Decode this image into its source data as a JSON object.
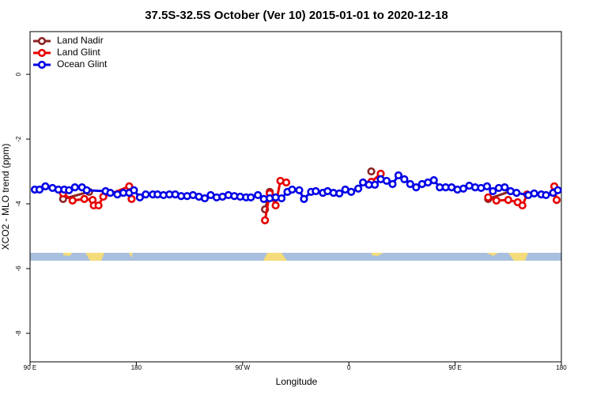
{
  "chart_data": {
    "type": "line",
    "title": "37.5S-32.5S October (Ver 10)   2015-01-01 to 2020-12-18",
    "x_label": "Longitude",
    "y_label": "XCO2 - MLO trend (ppm)",
    "xlim": [
      90,
      540
    ],
    "xticks": [
      {
        "value": 90,
        "label": "90 E"
      },
      180,
      {
        "value": 270,
        "label": "90 W"
      },
      {
        "value": 360,
        "label": "0"
      },
      {
        "value": 450,
        "label": "90 E"
      },
      {
        "value": 540,
        "label": "180"
      }
    ],
    "ylim": [
      -8.88,
      1.32
    ],
    "yticks": [
      0,
      -2,
      -4,
      -6,
      -8
    ],
    "legend": "top-left",
    "series": [
      {
        "name": "Land Nadir",
        "color": "#8b2323",
        "x": [
          118,
          140,
          200,
          289,
          293,
          350,
          379,
          420,
          478,
          497
        ],
        "values": [
          -3.85,
          -3.63,
          null,
          -4.17,
          -3.63,
          null,
          -3.0,
          null,
          -3.85,
          -3.61
        ]
      },
      {
        "name": "Land Glint",
        "color": "#e60000",
        "x": [
          118,
          126,
          136,
          143,
          144,
          148,
          152,
          174,
          176,
          230,
          289,
          293,
          298,
          302,
          307,
          340,
          379,
          387,
          420,
          478,
          485,
          495,
          503,
          507,
          511,
          520,
          534,
          536
        ],
        "values": [
          -3.68,
          -3.9,
          -3.85,
          -3.88,
          -4.05,
          -4.05,
          -3.78,
          -3.46,
          -3.85,
          null,
          -4.51,
          -3.68,
          -4.05,
          -3.29,
          -3.34,
          null,
          -3.32,
          -3.07,
          null,
          -3.8,
          -3.9,
          -3.88,
          -3.95,
          -4.05,
          -3.71,
          null,
          -3.46,
          -3.88
        ]
      },
      {
        "name": "Ocean Glint",
        "color": "#0000e6",
        "x": [
          94,
          98,
          103,
          109,
          114,
          119,
          123,
          128,
          134,
          138,
          154,
          158,
          164,
          169,
          174,
          178,
          183,
          188,
          194,
          198,
          203,
          208,
          213,
          218,
          223,
          228,
          233,
          238,
          243,
          248,
          253,
          258,
          263,
          268,
          273,
          277,
          283,
          288,
          293,
          298,
          303,
          308,
          312,
          318,
          322,
          328,
          332,
          338,
          342,
          347,
          352,
          357,
          362,
          368,
          372,
          377,
          382,
          387,
          392,
          397,
          402,
          407,
          412,
          417,
          422,
          427,
          432,
          437,
          442,
          447,
          452,
          457,
          462,
          467,
          472,
          477,
          482,
          487,
          492,
          497,
          502,
          512,
          517,
          523,
          527,
          533,
          537
        ],
        "values": [
          -3.56,
          -3.56,
          -3.46,
          -3.51,
          -3.56,
          -3.56,
          -3.58,
          -3.49,
          -3.49,
          -3.58,
          -3.61,
          -3.66,
          -3.71,
          -3.66,
          -3.66,
          -3.58,
          -3.8,
          -3.71,
          -3.71,
          -3.71,
          -3.73,
          -3.71,
          -3.71,
          -3.76,
          -3.76,
          -3.73,
          -3.78,
          -3.83,
          -3.73,
          -3.8,
          -3.78,
          -3.73,
          -3.76,
          -3.78,
          -3.8,
          -3.8,
          -3.73,
          -3.85,
          -3.83,
          -3.8,
          -3.83,
          -3.63,
          -3.56,
          -3.58,
          -3.85,
          -3.63,
          -3.61,
          -3.66,
          -3.61,
          -3.66,
          -3.68,
          -3.56,
          -3.63,
          -3.53,
          -3.34,
          -3.41,
          -3.41,
          -3.24,
          -3.29,
          -3.39,
          -3.12,
          -3.24,
          -3.39,
          -3.49,
          -3.39,
          -3.34,
          -3.27,
          -3.49,
          -3.49,
          -3.49,
          -3.56,
          -3.53,
          -3.44,
          -3.49,
          -3.51,
          -3.46,
          -3.61,
          -3.51,
          -3.49,
          -3.61,
          -3.66,
          -3.73,
          -3.68,
          -3.71,
          -3.73,
          -3.66,
          -3.58
        ]
      }
    ]
  }
}
